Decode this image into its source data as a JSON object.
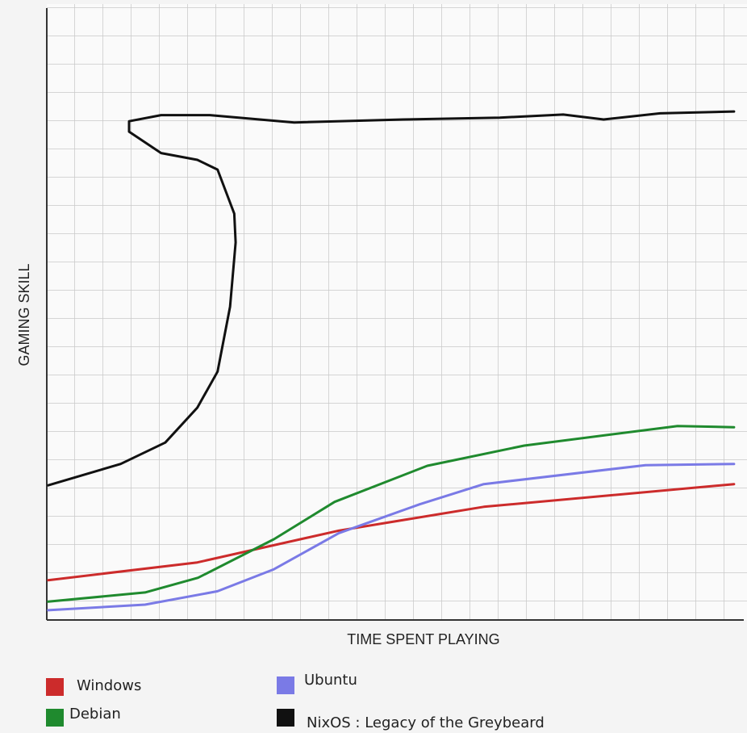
{
  "chart_data": {
    "type": "line",
    "x_label": "TIME SPENT PLAYING",
    "y_label": "GAMING SKILL",
    "xlim": [
      0,
      100
    ],
    "ylim": [
      0,
      100
    ],
    "series": [
      {
        "name": "Windows",
        "color": "#cc2b2b",
        "x": [
          0.2,
          21.6,
          41.9,
          62.7,
          98.6
        ],
        "values": [
          6.5,
          9.4,
          14.6,
          18.5,
          22.2
        ]
      },
      {
        "name": "Debian",
        "color": "#1f8a2e",
        "x": [
          0.2,
          14.1,
          21.7,
          32.6,
          41.3,
          54.6,
          68.5,
          90.5,
          98.6
        ],
        "values": [
          3.0,
          4.5,
          6.9,
          13.2,
          19.3,
          25.2,
          28.5,
          31.7,
          31.5
        ]
      },
      {
        "name": "Ubuntu",
        "color": "#7a7ae6",
        "x": [
          0.2,
          14.1,
          24.5,
          32.6,
          41.9,
          53.5,
          62.7,
          85.9,
          98.6
        ],
        "values": [
          1.6,
          2.5,
          4.7,
          8.3,
          14.2,
          18.9,
          22.2,
          25.3,
          25.5
        ]
      },
      {
        "name": "NixOS : Legacy of the Greybeard",
        "color": "#111111",
        "x": [
          0.2,
          10.6,
          17.0,
          21.6,
          24.5,
          26.3,
          27.1,
          26.9,
          24.5,
          21.6,
          16.4,
          11.8,
          11.8,
          16.4,
          23.4,
          35.5,
          51.2,
          65.0,
          74.1,
          79.9,
          88.0,
          98.6
        ],
        "values": [
          22.0,
          25.5,
          29.0,
          34.7,
          40.6,
          51.2,
          61.7,
          66.4,
          73.6,
          75.2,
          76.3,
          79.8,
          81.5,
          82.5,
          82.5,
          81.3,
          81.8,
          82.1,
          82.6,
          81.8,
          82.8,
          83.1
        ]
      }
    ]
  }
}
